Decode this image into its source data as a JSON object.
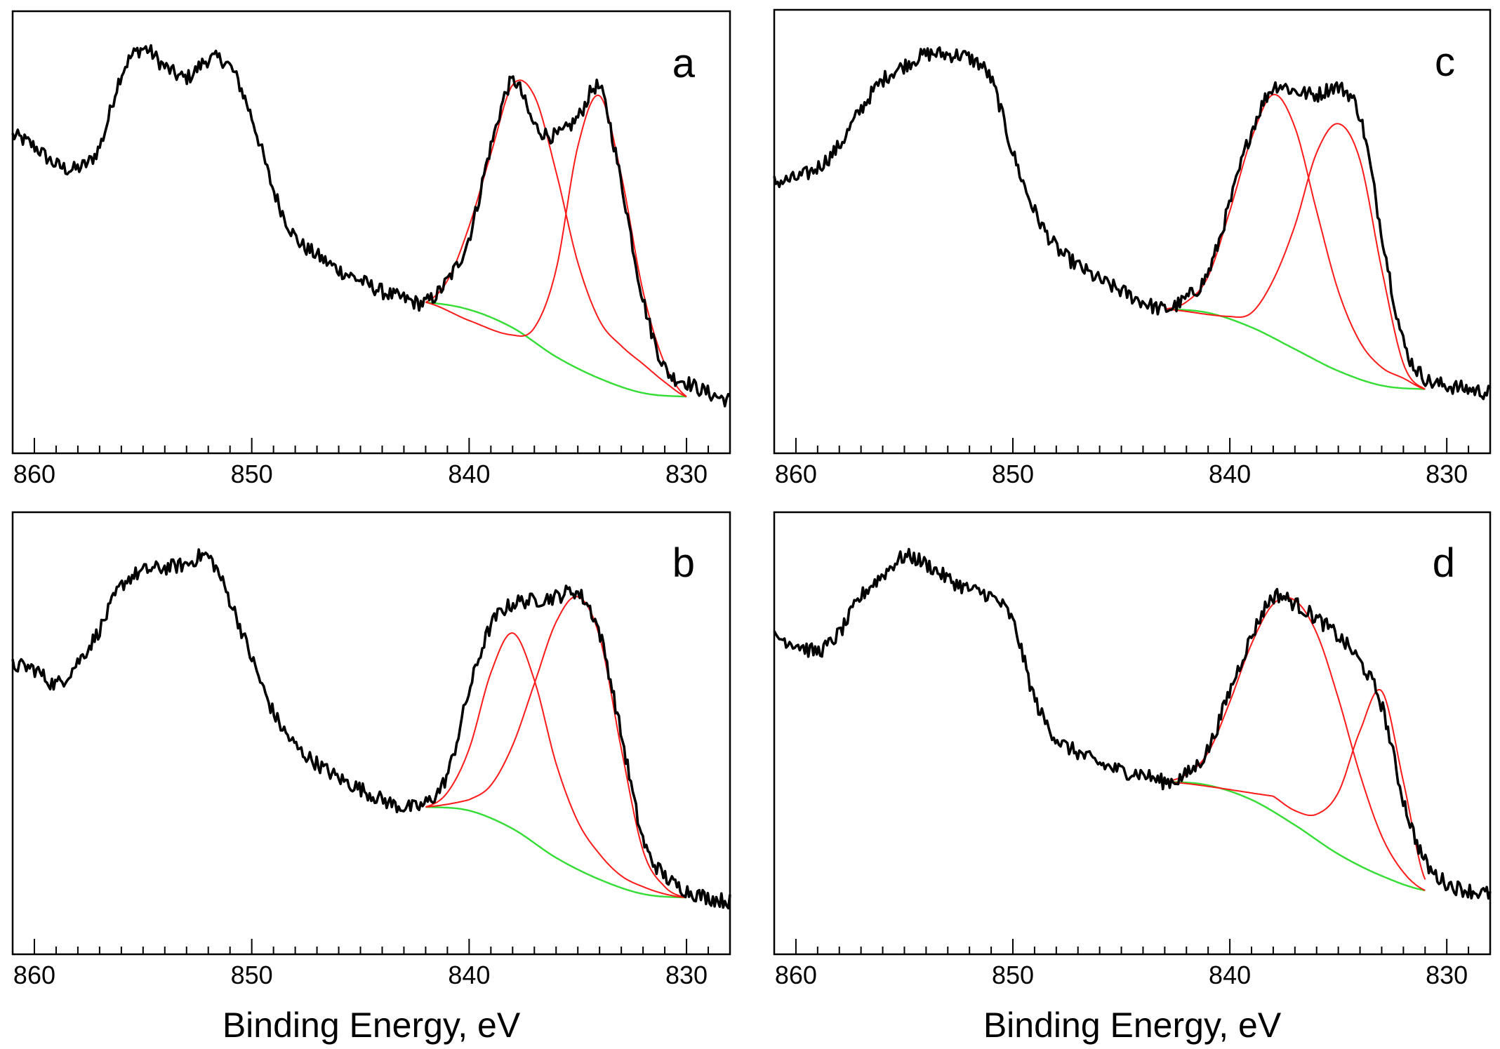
{
  "chart_data": [
    {
      "type": "line",
      "panel_label": "a",
      "xlabel": "",
      "ylabel": "",
      "xlim": [
        861,
        828
      ],
      "xticks": [
        860,
        850,
        840,
        830
      ],
      "xtick_labels": [
        "860",
        "850",
        "840",
        "830"
      ],
      "ylim": [
        0,
        100
      ],
      "colors": {
        "data": "#000000",
        "fit": "#ff1a1a",
        "background": "#33dd33"
      },
      "series": [
        {
          "name": "experimental",
          "style": "noisy",
          "x": [
            861,
            860,
            859,
            858,
            857,
            856,
            855,
            854,
            853,
            852,
            851,
            850,
            849,
            848,
            847,
            846,
            845,
            844,
            843,
            842,
            841,
            840,
            839,
            838,
            837,
            836,
            835,
            834,
            833,
            832,
            831,
            830,
            829,
            828
          ],
          "y": [
            73,
            70,
            65,
            64,
            70,
            90,
            97,
            92,
            89,
            94,
            92,
            78,
            58,
            45,
            40,
            36,
            33,
            30,
            28,
            27,
            33,
            45,
            70,
            88,
            76,
            73,
            78,
            86,
            60,
            28,
            9,
            5,
            2,
            0
          ]
        },
        {
          "name": "fit-peak-1",
          "style": "smooth",
          "x": [
            842,
            841,
            840,
            839,
            838,
            837,
            836,
            835,
            834,
            833,
            832,
            831,
            830
          ],
          "y": [
            27,
            33,
            48,
            68,
            87,
            84,
            63,
            38,
            22,
            15,
            10,
            5,
            1
          ]
        },
        {
          "name": "fit-peak-2",
          "style": "smooth",
          "x": [
            842,
            840,
            838,
            837,
            836,
            835,
            834,
            833,
            832,
            831,
            830
          ],
          "y": [
            27,
            22,
            18,
            20,
            36,
            70,
            84,
            62,
            30,
            10,
            1
          ]
        },
        {
          "name": "background",
          "style": "smooth",
          "x": [
            842,
            840,
            838,
            836,
            834,
            832,
            830
          ],
          "y": [
            27,
            25,
            20,
            12,
            6,
            2,
            1
          ]
        }
      ]
    },
    {
      "type": "line",
      "panel_label": "c",
      "xlabel": "",
      "ylabel": "",
      "xlim": [
        861,
        828
      ],
      "xticks": [
        860,
        850,
        840,
        830
      ],
      "xtick_labels": [
        "860",
        "850",
        "840",
        "830"
      ],
      "ylim": [
        0,
        100
      ],
      "colors": {
        "data": "#000000",
        "fit": "#ff1a1a",
        "background": "#33dd33"
      },
      "series": [
        {
          "name": "experimental",
          "style": "noisy",
          "x": [
            861,
            860,
            859,
            858,
            857,
            856,
            855,
            854,
            853,
            852,
            851,
            850,
            849,
            848,
            847,
            846,
            845,
            844,
            843,
            842,
            841,
            840,
            839,
            838,
            837,
            836,
            835,
            834,
            833,
            832,
            831,
            830,
            829,
            828
          ],
          "y": [
            60,
            61,
            64,
            70,
            80,
            88,
            92,
            95,
            95,
            94,
            88,
            68,
            52,
            42,
            37,
            33,
            30,
            27,
            25,
            28,
            35,
            54,
            74,
            86,
            85,
            84,
            86,
            78,
            46,
            16,
            6,
            4,
            3,
            2
          ]
        },
        {
          "name": "fit-peak-1",
          "style": "smooth",
          "x": [
            843,
            842,
            841,
            840,
            839,
            838,
            837,
            836,
            835,
            834,
            833,
            832,
            831
          ],
          "y": [
            25,
            27,
            34,
            52,
            72,
            84,
            75,
            52,
            30,
            16,
            9,
            6,
            3
          ]
        },
        {
          "name": "fit-peak-2",
          "style": "smooth",
          "x": [
            843,
            840,
            839,
            838,
            837,
            836,
            835,
            834,
            833,
            832,
            831
          ],
          "y": [
            25,
            23,
            24,
            33,
            48,
            68,
            76,
            66,
            36,
            10,
            3
          ]
        },
        {
          "name": "background",
          "style": "smooth",
          "x": [
            843,
            841,
            839,
            837,
            835,
            833,
            831
          ],
          "y": [
            25,
            24,
            20,
            14,
            8,
            4,
            3
          ]
        }
      ]
    },
    {
      "type": "line",
      "panel_label": "b",
      "xlabel": "Binding Energy, eV",
      "ylabel": "",
      "xlim": [
        861,
        828
      ],
      "xticks": [
        860,
        850,
        840,
        830
      ],
      "xtick_labels": [
        "860",
        "850",
        "840",
        "830"
      ],
      "ylim": [
        0,
        100
      ],
      "colors": {
        "data": "#000000",
        "fit": "#ff1a1a",
        "background": "#33dd33"
      },
      "series": [
        {
          "name": "experimental",
          "style": "noisy",
          "x": [
            861,
            860,
            859,
            858,
            857,
            856,
            855,
            854,
            853,
            852,
            851,
            850,
            849,
            848,
            847,
            846,
            845,
            844,
            843,
            842,
            841,
            840,
            839,
            838,
            837,
            836,
            835,
            834,
            833,
            832,
            831,
            830,
            829,
            828
          ],
          "y": [
            65,
            64,
            60,
            66,
            75,
            87,
            91,
            92,
            93,
            95,
            83,
            67,
            52,
            43,
            38,
            34,
            31,
            28,
            26,
            27,
            35,
            58,
            76,
            82,
            83,
            84,
            85,
            74,
            46,
            17,
            7,
            3,
            1,
            0
          ]
        },
        {
          "name": "fit-peak-1",
          "style": "smooth",
          "x": [
            842,
            841,
            840,
            839,
            838,
            837,
            836,
            835,
            834,
            833,
            832,
            831,
            830
          ],
          "y": [
            26,
            30,
            42,
            63,
            74,
            61,
            38,
            22,
            13,
            7,
            4,
            2,
            1
          ]
        },
        {
          "name": "fit-peak-2",
          "style": "smooth",
          "x": [
            842,
            840,
            839,
            838,
            837,
            836,
            835,
            834,
            833,
            832,
            831,
            830
          ],
          "y": [
            26,
            28,
            32,
            43,
            60,
            77,
            84,
            73,
            42,
            14,
            4,
            1
          ]
        },
        {
          "name": "background",
          "style": "smooth",
          "x": [
            842,
            840,
            838,
            836,
            834,
            832,
            830
          ],
          "y": [
            26,
            25,
            20,
            12,
            6,
            2,
            1
          ]
        }
      ]
    },
    {
      "type": "line",
      "panel_label": "d",
      "xlabel": "Binding Energy, eV",
      "ylabel": "",
      "xlim": [
        861,
        828
      ],
      "xticks": [
        860,
        850,
        840,
        830
      ],
      "xtick_labels": [
        "860",
        "850",
        "840",
        "830"
      ],
      "ylim": [
        0,
        100
      ],
      "colors": {
        "data": "#000000",
        "fit": "#ff1a1a",
        "background": "#33dd33"
      },
      "series": [
        {
          "name": "experimental",
          "style": "noisy",
          "x": [
            861,
            860,
            859,
            858,
            857,
            856,
            855,
            854,
            853,
            852,
            851,
            850,
            849,
            848,
            847,
            846,
            845,
            844,
            843,
            842,
            841,
            840,
            839,
            838,
            837,
            836,
            835,
            834,
            833,
            832,
            831,
            830,
            829,
            828
          ],
          "y": [
            73,
            71,
            69,
            74,
            84,
            90,
            95,
            93,
            89,
            86,
            84,
            77,
            56,
            45,
            41,
            38,
            36,
            35,
            33,
            35,
            42,
            58,
            73,
            84,
            82,
            78,
            73,
            66,
            54,
            28,
            11,
            5,
            3,
            2
          ]
        },
        {
          "name": "fit-peak-1",
          "style": "smooth",
          "x": [
            843,
            842,
            841,
            840,
            839,
            838,
            837,
            836,
            835,
            834,
            833,
            832,
            831
          ],
          "y": [
            33,
            35,
            41,
            55,
            71,
            82,
            83,
            74,
            56,
            35,
            18,
            8,
            3
          ]
        },
        {
          "name": "fit-peak-2",
          "style": "smooth",
          "x": [
            843,
            838,
            837,
            836,
            835,
            834,
            833,
            832,
            831
          ],
          "y": [
            33,
            29,
            25,
            24,
            30,
            47,
            58,
            33,
            6
          ]
        },
        {
          "name": "background",
          "style": "smooth",
          "x": [
            843,
            841,
            839,
            837,
            835,
            833,
            831
          ],
          "y": [
            33,
            32,
            28,
            21,
            13,
            7,
            3
          ]
        }
      ]
    }
  ]
}
